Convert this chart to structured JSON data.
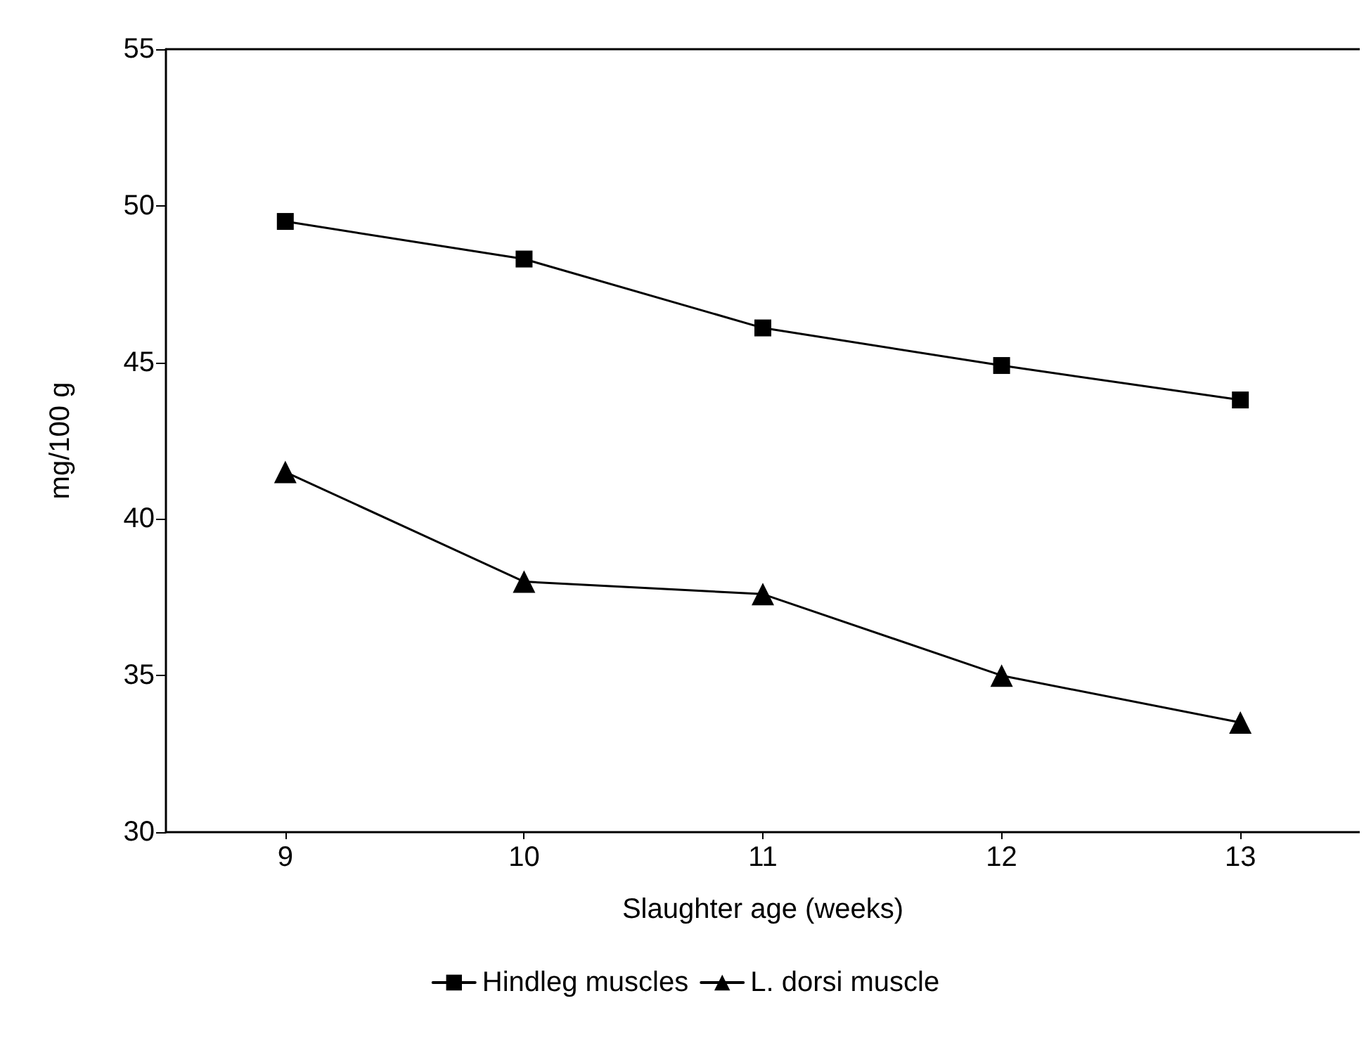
{
  "chart_data": {
    "type": "line",
    "xlabel": "Slaughter age (weeks)",
    "ylabel": "mg/100 g",
    "x": [
      9,
      10,
      11,
      12,
      13
    ],
    "xlim": [
      8.5,
      13.5
    ],
    "xticks": [
      9,
      10,
      11,
      12,
      13
    ],
    "ylim": [
      30,
      55
    ],
    "yticks": [
      30,
      35,
      40,
      45,
      50,
      55
    ],
    "series": [
      {
        "name": "Hindleg muscles",
        "color": "#000000",
        "marker": "square",
        "values": [
          49.5,
          48.3,
          46.1,
          44.9,
          43.8
        ]
      },
      {
        "name": "L. dorsi muscle",
        "color": "#000000",
        "marker": "triangle",
        "values": [
          41.5,
          38.0,
          37.6,
          35.0,
          33.5
        ]
      }
    ],
    "legend": "bottom",
    "grid": false,
    "line_style": "solid"
  }
}
